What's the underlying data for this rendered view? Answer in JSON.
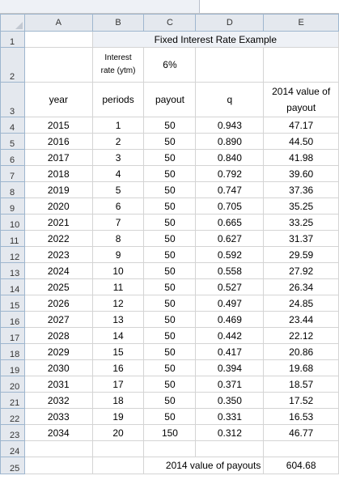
{
  "sheet": {
    "column_headers": [
      "A",
      "B",
      "C",
      "D",
      "E"
    ],
    "title": "Fixed Interest Rate Example",
    "rate_label": "Interest rate (ytm)",
    "rate_value": "6%",
    "headers": {
      "year": "year",
      "periods": "periods",
      "payout": "payout",
      "q": "q",
      "value": "2014 value of payout"
    },
    "row_numbers": [
      "1",
      "2",
      "3",
      "4",
      "5",
      "6",
      "7",
      "8",
      "9",
      "10",
      "11",
      "12",
      "13",
      "14",
      "15",
      "16",
      "17",
      "18",
      "19",
      "20",
      "21",
      "22",
      "23",
      "24",
      "25"
    ],
    "rows": [
      {
        "year": "2015",
        "period": "1",
        "payout": "50",
        "q": "0.943",
        "value": "47.17"
      },
      {
        "year": "2016",
        "period": "2",
        "payout": "50",
        "q": "0.890",
        "value": "44.50"
      },
      {
        "year": "2017",
        "period": "3",
        "payout": "50",
        "q": "0.840",
        "value": "41.98"
      },
      {
        "year": "2018",
        "period": "4",
        "payout": "50",
        "q": "0.792",
        "value": "39.60"
      },
      {
        "year": "2019",
        "period": "5",
        "payout": "50",
        "q": "0.747",
        "value": "37.36"
      },
      {
        "year": "2020",
        "period": "6",
        "payout": "50",
        "q": "0.705",
        "value": "35.25"
      },
      {
        "year": "2021",
        "period": "7",
        "payout": "50",
        "q": "0.665",
        "value": "33.25"
      },
      {
        "year": "2022",
        "period": "8",
        "payout": "50",
        "q": "0.627",
        "value": "31.37"
      },
      {
        "year": "2023",
        "period": "9",
        "payout": "50",
        "q": "0.592",
        "value": "29.59"
      },
      {
        "year": "2024",
        "period": "10",
        "payout": "50",
        "q": "0.558",
        "value": "27.92"
      },
      {
        "year": "2025",
        "period": "11",
        "payout": "50",
        "q": "0.527",
        "value": "26.34"
      },
      {
        "year": "2026",
        "period": "12",
        "payout": "50",
        "q": "0.497",
        "value": "24.85"
      },
      {
        "year": "2027",
        "period": "13",
        "payout": "50",
        "q": "0.469",
        "value": "23.44"
      },
      {
        "year": "2028",
        "period": "14",
        "payout": "50",
        "q": "0.442",
        "value": "22.12"
      },
      {
        "year": "2029",
        "period": "15",
        "payout": "50",
        "q": "0.417",
        "value": "20.86"
      },
      {
        "year": "2030",
        "period": "16",
        "payout": "50",
        "q": "0.394",
        "value": "19.68"
      },
      {
        "year": "2031",
        "period": "17",
        "payout": "50",
        "q": "0.371",
        "value": "18.57"
      },
      {
        "year": "2032",
        "period": "18",
        "payout": "50",
        "q": "0.350",
        "value": "17.52"
      },
      {
        "year": "2033",
        "period": "19",
        "payout": "50",
        "q": "0.331",
        "value": "16.53"
      },
      {
        "year": "2034",
        "period": "20",
        "payout": "150",
        "q": "0.312",
        "value": "46.77"
      }
    ],
    "total_label": "2014 value of payouts",
    "total_value": "604.68"
  }
}
